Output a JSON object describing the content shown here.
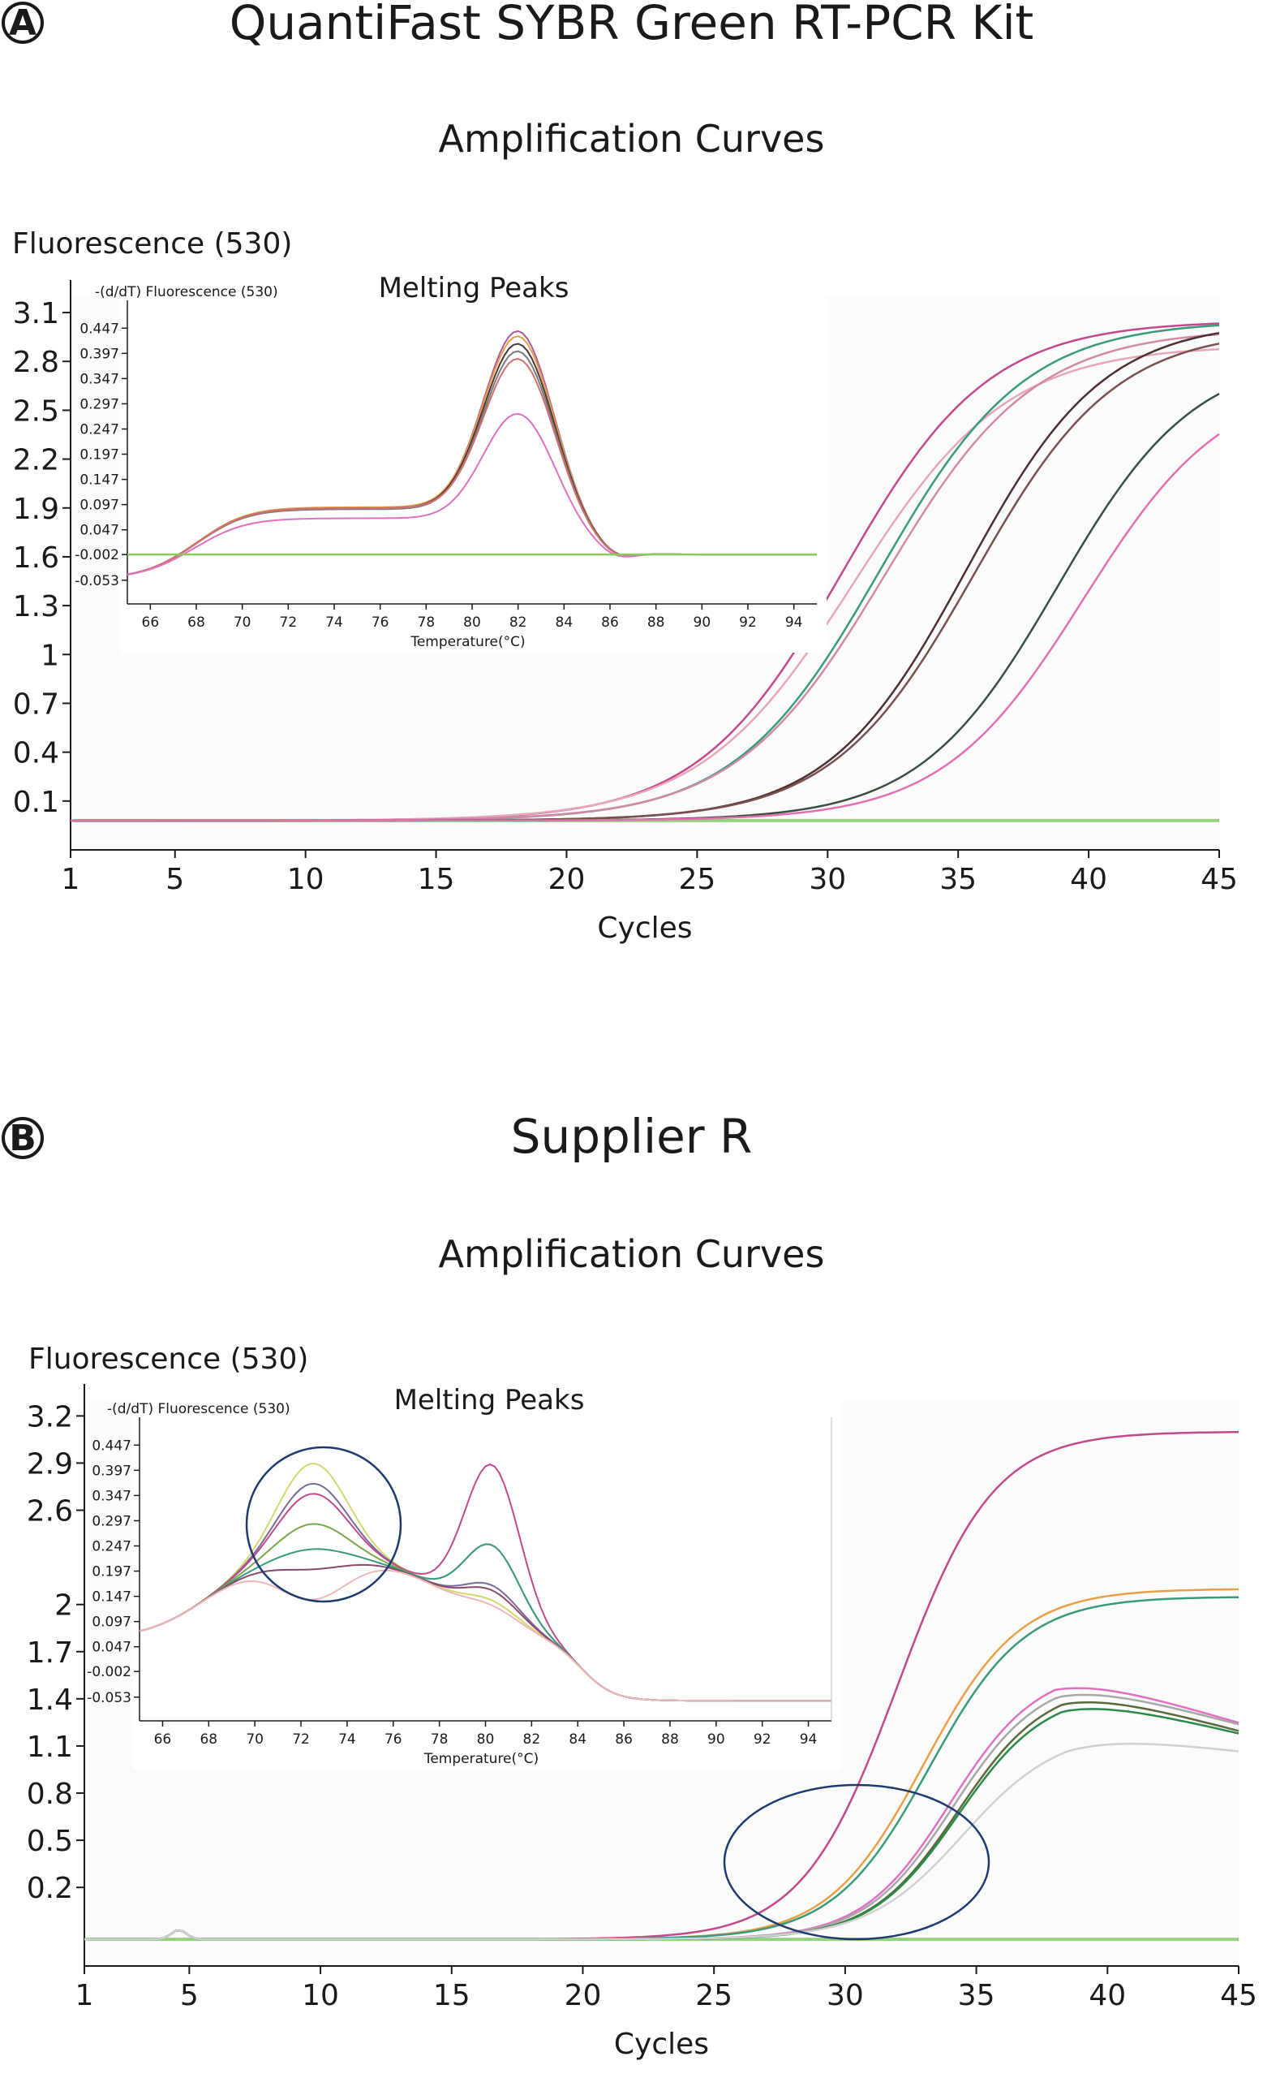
{
  "panels": [
    {
      "letter": "A",
      "title": "QuantiFast SYBR Green RT-PCR Kit",
      "subtitle": "Amplification Curves",
      "main": {
        "type": "line",
        "ylabel": "Fluorescence (530)",
        "xlabel": "Cycles",
        "xlim": [
          1,
          45
        ],
        "ylim": [
          -0.2,
          3.2
        ],
        "xticks": [
          1,
          5,
          10,
          15,
          20,
          25,
          30,
          35,
          40,
          45
        ],
        "yticks": [
          "3.1",
          "2.8",
          "2.5",
          "2.2",
          "1.9",
          "1.6",
          "1.3",
          "1",
          "0.7",
          "0.4",
          "0.1"
        ],
        "baseline": -0.02,
        "series": [
          {
            "color": "#c04a8a",
            "mid": 30.6,
            "max": 3.05,
            "k": 0.36
          },
          {
            "color": "#e6a8b8",
            "mid": 31.0,
            "max": 2.9,
            "k": 0.34
          },
          {
            "color": "#3a9a7c",
            "mid": 32.0,
            "max": 3.05,
            "k": 0.36
          },
          {
            "color": "#d08aa8",
            "mid": 32.2,
            "max": 3.0,
            "k": 0.35
          },
          {
            "color": "#4a3030",
            "mid": 35.3,
            "max": 3.05,
            "k": 0.38
          },
          {
            "color": "#7a5050",
            "mid": 35.6,
            "max": 3.0,
            "k": 0.37
          },
          {
            "color": "#3a4e40",
            "mid": 38.8,
            "max": 2.85,
            "k": 0.38
          },
          {
            "color": "#e070b0",
            "mid": 39.8,
            "max": 2.7,
            "k": 0.37
          }
        ]
      },
      "inset": {
        "type": "line",
        "title": "Melting Peaks",
        "ylabel": "-(d/dT) Fluorescence (530)",
        "xlabel": "Temperature(°C)",
        "xlim": [
          65,
          95
        ],
        "ylim": [
          -0.1,
          0.47
        ],
        "xticks": [
          66,
          68,
          70,
          72,
          74,
          76,
          78,
          80,
          82,
          84,
          86,
          88,
          90,
          92,
          94
        ],
        "yticks": [
          "0.447",
          "0.397",
          "0.347",
          "0.297",
          "0.247",
          "0.197",
          "0.147",
          "0.097",
          "0.047",
          "-0.002",
          "-0.053"
        ],
        "series": [
          {
            "color": "#b05a9a",
            "peak": 0.445,
            "plateau": 0.09
          },
          {
            "color": "#e8a048",
            "peak": 0.435,
            "plateau": 0.092
          },
          {
            "color": "#4a3838",
            "peak": 0.42,
            "plateau": 0.09
          },
          {
            "color": "#7a7a7a",
            "peak": 0.405,
            "plateau": 0.088
          },
          {
            "color": "#d07070",
            "peak": 0.39,
            "plateau": 0.09
          },
          {
            "color": "#e070c0",
            "peak": 0.28,
            "plateau": 0.07
          },
          {
            "color": "#8acb5a",
            "flat": true
          }
        ]
      }
    },
    {
      "letter": "B",
      "title": "Supplier R",
      "subtitle": "Amplification Curves",
      "main": {
        "type": "line",
        "ylabel": "Fluorescence (530)",
        "xlabel": "Cycles",
        "xlim": [
          1,
          45
        ],
        "ylim": [
          -0.3,
          3.3
        ],
        "xticks": [
          1,
          5,
          10,
          15,
          20,
          25,
          30,
          35,
          40,
          45
        ],
        "yticks": [
          "3.2",
          "2.9",
          "2.6",
          "2",
          "1.7",
          "1.4",
          "1.1",
          "0.8",
          "0.5",
          "0.2"
        ],
        "baseline": -0.13,
        "series": [
          {
            "color": "#c04a8a",
            "mid": 32.0,
            "max": 3.1,
            "k": 0.55,
            "droop": 0.0
          },
          {
            "color": "#e8a048",
            "mid": 33.0,
            "max": 2.1,
            "k": 0.55,
            "droop": 0.0
          },
          {
            "color": "#3a9a7c",
            "mid": 33.2,
            "max": 2.05,
            "k": 0.55,
            "droop": 0.0
          },
          {
            "color": "#e070c0",
            "mid": 34.0,
            "max": 1.6,
            "k": 0.6,
            "droop": 0.05
          },
          {
            "color": "#a8a8a8",
            "mid": 34.1,
            "max": 1.55,
            "k": 0.6,
            "droop": 0.045
          },
          {
            "color": "#5a6a3a",
            "mid": 34.3,
            "max": 1.5,
            "k": 0.6,
            "droop": 0.045
          },
          {
            "color": "#2a8a4a",
            "mid": 34.3,
            "max": 1.45,
            "k": 0.6,
            "droop": 0.04
          },
          {
            "color": "#d0d0d0",
            "mid": 34.5,
            "max": 1.2,
            "k": 0.55,
            "droop": 0.02
          }
        ]
      },
      "inset": {
        "type": "line",
        "title": "Melting Peaks",
        "ylabel": "-(d/dT) Fluorescence (530)",
        "xlabel": "Temperature(°C)",
        "xlim": [
          65,
          95
        ],
        "ylim": [
          -0.1,
          0.47
        ],
        "xticks": [
          66,
          68,
          70,
          72,
          74,
          76,
          78,
          80,
          82,
          84,
          86,
          88,
          90,
          92,
          94
        ],
        "yticks": [
          "0.447",
          "0.397",
          "0.347",
          "0.297",
          "0.247",
          "0.197",
          "0.147",
          "0.097",
          "0.047",
          "-0.002",
          "-0.053"
        ],
        "series": [
          {
            "color": "#d4d870",
            "peak1": 0.41,
            "peak2": 0.04
          },
          {
            "color": "#7a6a9a",
            "peak1": 0.37,
            "peak2": 0.07
          },
          {
            "color": "#c04a8a",
            "peak1": 0.35,
            "peak2": 0.31
          },
          {
            "color": "#7aa84a",
            "peak1": 0.29,
            "peak2": 0.15
          },
          {
            "color": "#3a9a7c",
            "peak1": 0.24,
            "peak2": 0.15
          },
          {
            "color": "#8a4a6a",
            "peak1": 0.2,
            "peak2": 0.06
          },
          {
            "color": "#f0b8b8",
            "peak1": 0.14,
            "peak2": 0.03
          }
        ]
      }
    }
  ],
  "colors": {
    "axis": "#1a1a1a",
    "highlight_circle": "#1f3a6e",
    "baseline_green": "#7ec860"
  }
}
